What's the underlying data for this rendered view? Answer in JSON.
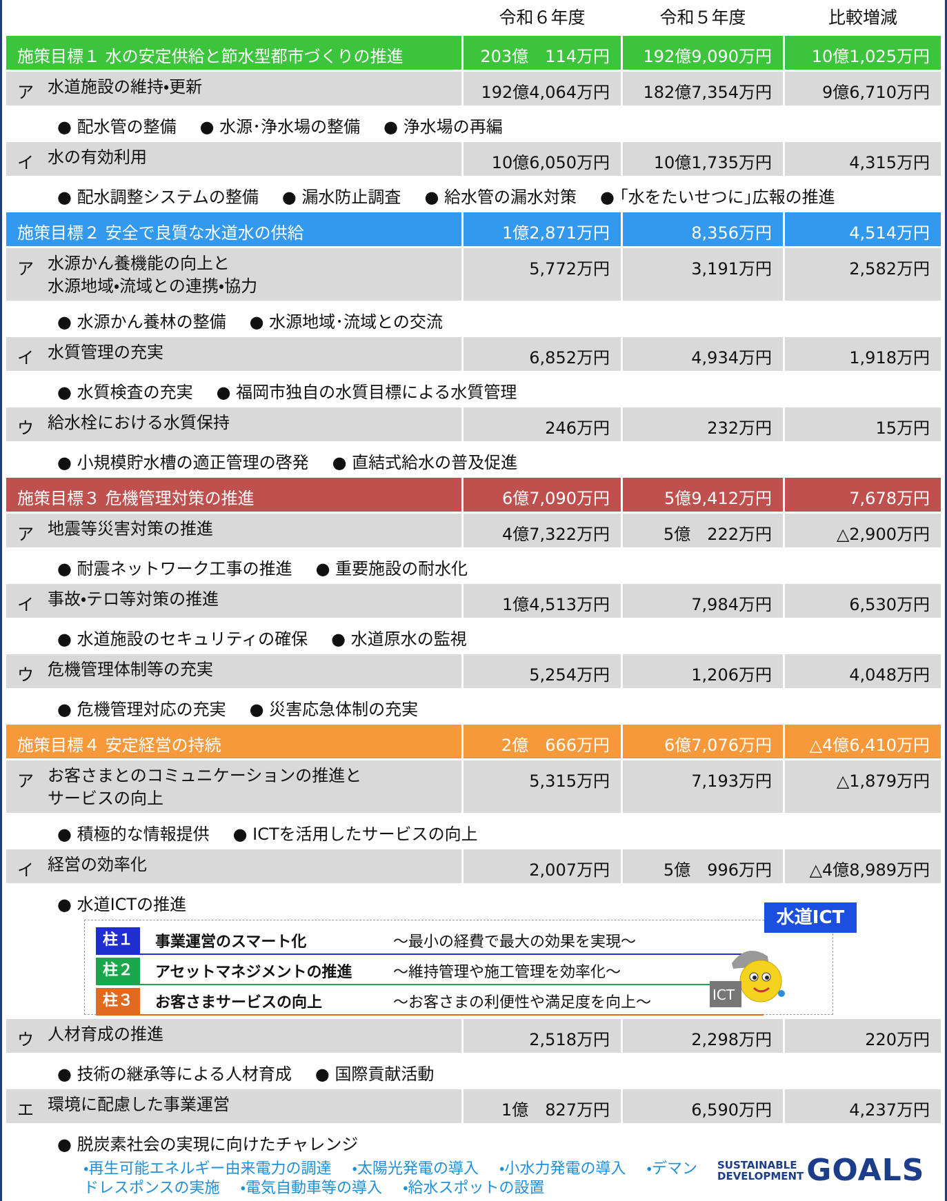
{
  "header": {
    "columns": [
      "令和６年度",
      "令和５年度",
      "比較増減"
    ]
  },
  "goals": [
    {
      "title": "施策目標１ 水の安定供給と節水型都市づくりの推進",
      "color": "#3cc53c",
      "values": [
        "203億　114万円",
        "192億9,090万円",
        "10億1,025万円"
      ],
      "items": [
        {
          "label": "ア",
          "name": "水道施設の維持・更新",
          "values": [
            "192億4,064万円",
            "182億7,354万円",
            "9億6,710万円"
          ],
          "bullets": [
            "配水管の整備",
            "水源･浄水場の整備",
            "浄水場の再編"
          ]
        },
        {
          "label": "イ",
          "name": "水の有効利用",
          "values": [
            "10億6,050万円",
            "10億1,735万円",
            "4,315万円"
          ],
          "bullets": [
            "配水調整システムの整備",
            "漏水防止調査",
            "給水管の漏水対策",
            "｢水をたいせつに｣広報の推進"
          ]
        }
      ]
    },
    {
      "title": "施策目標２ 安全で良質な水道水の供給",
      "color": "#3399ee",
      "values": [
        "1億2,871万円",
        "8,356万円",
        "4,514万円"
      ],
      "items": [
        {
          "label": "ア",
          "name": "水源かん養機能の向上と\n水源地域・流域との連携・協力",
          "values": [
            "5,772万円",
            "3,191万円",
            "2,582万円"
          ],
          "bullets": [
            "水源かん養林の整備",
            "水源地域･流域との交流"
          ]
        },
        {
          "label": "イ",
          "name": "水質管理の充実",
          "values": [
            "6,852万円",
            "4,934万円",
            "1,918万円"
          ],
          "bullets": [
            "水質検査の充実",
            "福岡市独自の水質目標による水質管理"
          ]
        },
        {
          "label": "ウ",
          "name": "給水栓における水質保持",
          "values": [
            "246万円",
            "232万円",
            "15万円"
          ],
          "bullets": [
            "小規模貯水槽の適正管理の啓発",
            "直結式給水の普及促進"
          ]
        }
      ]
    },
    {
      "title": "施策目標３ 危機管理対策の推進",
      "color": "#c0504d",
      "values": [
        "6億7,090万円",
        "5億9,412万円",
        "7,678万円"
      ],
      "items": [
        {
          "label": "ア",
          "name": "地震等災害対策の推進",
          "values": [
            "4億7,322万円",
            "5億　222万円",
            "△2,900万円"
          ],
          "bullets": [
            "耐震ネットワーク工事の推進",
            "重要施設の耐水化"
          ]
        },
        {
          "label": "イ",
          "name": "事故・テロ等対策の推進",
          "values": [
            "1億4,513万円",
            "7,984万円",
            "6,530万円"
          ],
          "bullets": [
            "水道施設のセキュリティの確保",
            "水道原水の監視"
          ]
        },
        {
          "label": "ウ",
          "name": "危機管理体制等の充実",
          "values": [
            "5,254万円",
            "1,206万円",
            "4,048万円"
          ],
          "bullets": [
            "危機管理対応の充実",
            "災害応急体制の充実"
          ]
        }
      ]
    },
    {
      "title": "施策目標４ 安定経営の持続",
      "color": "#f7993a",
      "values": [
        "2億　666万円",
        "6億7,076万円",
        "△4億6,410万円"
      ],
      "items": [
        {
          "label": "ア",
          "name": "お客さまとのコミュニケーションの推進と\nサービスの向上",
          "values": [
            "5,315万円",
            "7,193万円",
            "△1,879万円"
          ],
          "bullets": [
            "積極的な情報提供",
            "ICTを活用したサービスの向上"
          ]
        },
        {
          "label": "イ",
          "name": "経営の効率化",
          "values": [
            "2,007万円",
            "5億　996万円",
            "△4億8,989万円"
          ],
          "bullets": [
            "水道ICTの推進"
          ],
          "pillars": {
            "badge": "水道ICT",
            "icon": "ICT",
            "rows": [
              {
                "tag": "柱１",
                "name": "事業運営のスマート化",
                "desc": "～最小の経費で最大の効果を実現～",
                "color": "#1f2fcf"
              },
              {
                "tag": "柱２",
                "name": "アセットマネジメントの推進",
                "desc": "～維持管理や施工管理を効率化～",
                "color": "#1aa64a"
              },
              {
                "tag": "柱３",
                "name": "お客さまサービスの向上",
                "desc": "～お客さまの利便性や満足度を向上～",
                "color": "#e06a1f"
              }
            ]
          }
        },
        {
          "label": "ウ",
          "name": "人材育成の推進",
          "values": [
            "2,518万円",
            "2,298万円",
            "220万円"
          ],
          "bullets": [
            "技術の継承等による人材育成",
            "国際貢献活動"
          ]
        },
        {
          "label": "エ",
          "name": "環境に配慮した事業運営",
          "values": [
            "1億　827万円",
            "6,590万円",
            "4,237万円"
          ],
          "bullets": [
            "脱炭素社会の実現に向けたチャレンジ"
          ],
          "sub_bullets": [
            "再生可能エネルギー由来電力の調達",
            "太陽光発電の導入",
            "小水力発電の導入",
            "デマンドレスポンスの実施",
            "電気自動車等の導入",
            "給水スポットの設置"
          ]
        }
      ]
    }
  ],
  "sdgs": {
    "line1": "SUSTAINABLE",
    "line2": "DEVELOPMENT",
    "goals": "GOALS"
  }
}
